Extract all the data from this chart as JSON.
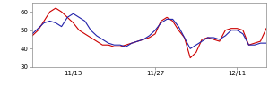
{
  "xlim": [
    0,
    40
  ],
  "ylim": [
    30,
    65
  ],
  "yticks": [
    30,
    40,
    50,
    60
  ],
  "xtick_positions": [
    7,
    21,
    35
  ],
  "xtick_labels": [
    "11/13",
    "11/27",
    "12/11"
  ],
  "red_line": [
    47,
    50,
    55,
    60,
    62,
    60,
    57,
    54,
    50,
    48,
    46,
    44,
    42,
    42,
    41,
    41,
    42,
    43,
    44,
    45,
    46,
    48,
    55,
    57,
    55,
    50,
    46,
    35,
    38,
    45,
    46,
    45,
    44,
    50,
    51,
    51,
    50,
    42,
    43,
    44,
    51
  ],
  "blue_line": [
    48,
    51,
    54,
    55,
    54,
    52,
    57,
    59,
    57,
    55,
    50,
    47,
    45,
    43,
    42,
    42,
    41,
    43,
    44,
    45,
    47,
    50,
    54,
    56,
    56,
    52,
    46,
    40,
    42,
    44,
    46,
    46,
    45,
    47,
    50,
    50,
    48,
    42,
    42,
    43,
    43
  ],
  "red_color": "#cc0000",
  "blue_color": "#2222aa",
  "line_width": 0.8,
  "bg_color": "#ffffff"
}
